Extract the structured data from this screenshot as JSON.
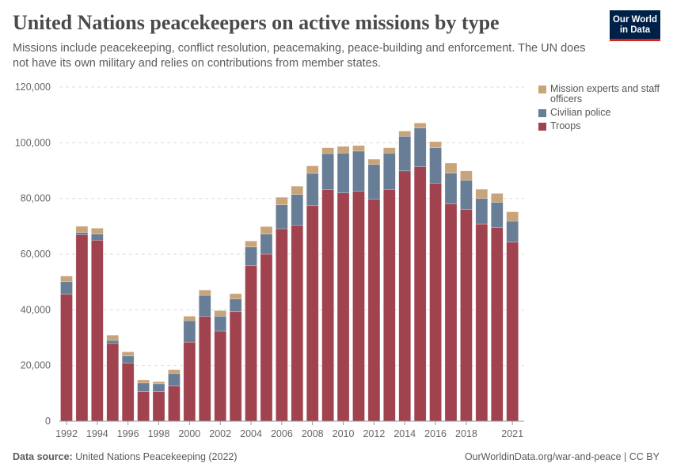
{
  "header": {
    "title": "United Nations peacekeepers on active missions by type",
    "subtitle": "Missions include peacekeeping, conflict resolution, peacemaking, peace-building and enforcement. The UN does not have its own military and relies on contributions from member states.",
    "logo_line1": "Our World",
    "logo_line2": "in Data"
  },
  "footer": {
    "source_label": "Data source:",
    "source": "United Nations Peacekeeping (2022)",
    "credit": "OurWorldinData.org/war-and-peace | CC BY"
  },
  "chart_data": {
    "type": "bar",
    "stacked": true,
    "title": "United Nations peacekeepers on active missions by type",
    "xlabel": "",
    "ylabel": "",
    "ylim": [
      0,
      120000
    ],
    "yticks": [
      "0",
      "20,000",
      "40,000",
      "60,000",
      "80,000",
      "100,000",
      "120,000"
    ],
    "ytick_values": [
      0,
      20000,
      40000,
      60000,
      80000,
      100000,
      120000
    ],
    "xtick_labels": [
      "1992",
      "1994",
      "1996",
      "1998",
      "2000",
      "2002",
      "2004",
      "2006",
      "2008",
      "2010",
      "2012",
      "2014",
      "2016",
      "2018",
      "2021"
    ],
    "grid": "horizontal dashed",
    "legend_position": "right",
    "categories": [
      1992,
      1993,
      1994,
      1995,
      1996,
      1997,
      1998,
      1999,
      2000,
      2001,
      2002,
      2003,
      2004,
      2005,
      2006,
      2007,
      2008,
      2009,
      2010,
      2011,
      2012,
      2013,
      2014,
      2015,
      2016,
      2017,
      2018,
      2019,
      2020,
      2021
    ],
    "series": [
      {
        "name": "Troops",
        "color": "#a0434f",
        "values": [
          45600,
          67000,
          65000,
          27900,
          20800,
          10600,
          10600,
          12600,
          28400,
          37600,
          32400,
          39300,
          55800,
          60000,
          69100,
          70400,
          77400,
          83100,
          82000,
          82600,
          79700,
          83200,
          89900,
          91400,
          85500,
          78000,
          76000,
          70800,
          69500,
          64300
        ]
      },
      {
        "name": "Civilian police",
        "color": "#687d96",
        "values": [
          4500,
          800,
          2200,
          1100,
          2600,
          3100,
          2800,
          4500,
          7700,
          7600,
          5300,
          4600,
          6800,
          7200,
          8600,
          11000,
          11600,
          13000,
          14300,
          14400,
          12500,
          13100,
          12400,
          13900,
          12700,
          11100,
          10500,
          9200,
          9100,
          7600
        ]
      },
      {
        "name": "Mission experts and staff officers",
        "color": "#c8a47a",
        "values": [
          2000,
          2200,
          2100,
          1900,
          1500,
          1100,
          800,
          1400,
          1600,
          1900,
          2000,
          1900,
          2100,
          2700,
          2700,
          3000,
          2700,
          2100,
          2400,
          2000,
          1900,
          1900,
          1900,
          1800,
          2200,
          3600,
          3400,
          3300,
          3200,
          3300
        ]
      }
    ]
  }
}
